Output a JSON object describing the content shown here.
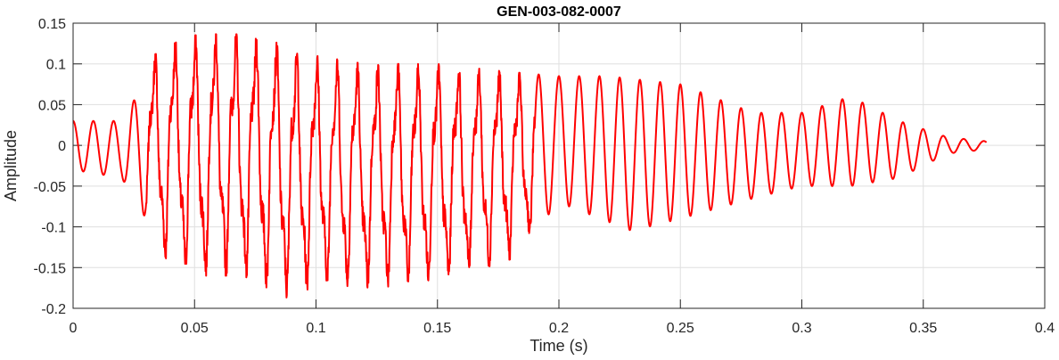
{
  "chart_data": {
    "type": "line",
    "title": "GEN-003-082-0007",
    "xlabel": "Time (s)",
    "ylabel": "Amplitude",
    "xlim": [
      0,
      0.4
    ],
    "ylim": [
      -0.2,
      0.15
    ],
    "grid": true,
    "x_ticks": [
      0,
      0.05,
      0.1,
      0.15,
      0.2,
      0.25,
      0.3,
      0.35,
      0.4
    ],
    "x_tick_labels": [
      "0",
      "0.05",
      "0.1",
      "0.15",
      "0.2",
      "0.25",
      "0.3",
      "0.35",
      "0.4"
    ],
    "y_ticks": [
      0.15,
      0.1,
      0.05,
      0,
      -0.05,
      -0.1,
      -0.15,
      -0.2
    ],
    "y_tick_labels": [
      "0.15",
      "0.1",
      "0.05",
      "0",
      "-0.05",
      "-0.1",
      "-0.15",
      "-0.2"
    ],
    "series": [
      {
        "color": "#ff0000",
        "description": "oscillating waveform, approx. 120 Hz, from t=0 to t=0.376 s",
        "duration_s": 0.376,
        "frequency_hz": 120,
        "envelope_top": {
          "t": [
            0,
            0.02,
            0.03,
            0.035,
            0.05,
            0.06,
            0.08,
            0.1,
            0.12,
            0.15,
            0.18,
            0.2,
            0.22,
            0.25,
            0.28,
            0.3,
            0.32,
            0.34,
            0.36,
            0.376
          ],
          "v": [
            0.03,
            0.03,
            0.08,
            0.125,
            0.135,
            0.14,
            0.13,
            0.11,
            0.1,
            0.1,
            0.09,
            0.085,
            0.085,
            0.075,
            0.04,
            0.04,
            0.06,
            0.03,
            0.01,
            0.005
          ]
        },
        "envelope_bottom": {
          "t": [
            0,
            0.02,
            0.03,
            0.035,
            0.05,
            0.07,
            0.09,
            0.1,
            0.12,
            0.15,
            0.18,
            0.2,
            0.23,
            0.25,
            0.28,
            0.3,
            0.32,
            0.34,
            0.36,
            0.376
          ],
          "v": [
            -0.03,
            -0.04,
            -0.09,
            -0.135,
            -0.16,
            -0.16,
            -0.19,
            -0.17,
            -0.175,
            -0.17,
            -0.14,
            -0.07,
            -0.105,
            -0.09,
            -0.065,
            -0.05,
            -0.05,
            -0.04,
            -0.01,
            -0.005
          ]
        }
      }
    ]
  }
}
